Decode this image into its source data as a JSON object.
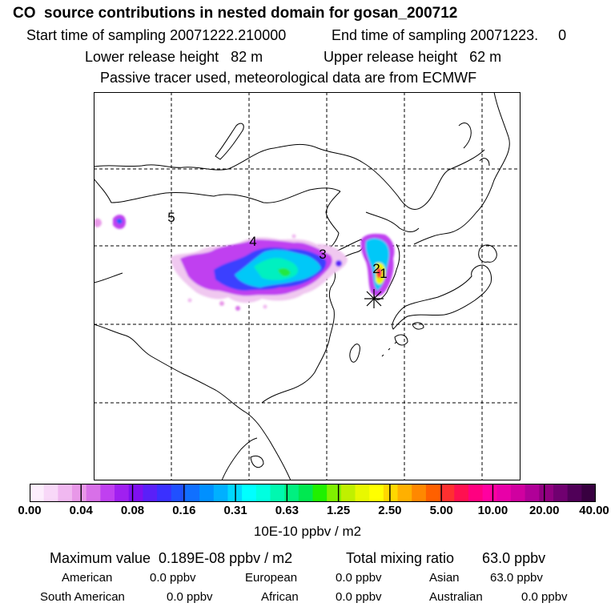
{
  "header": {
    "title": "CO  source contributions in nested domain for gosan_200712",
    "start": "Start time of sampling 20071222.210000",
    "end": "End time of sampling 20071223.     0",
    "lower": "Lower release height   82 m",
    "upper": "Upper release height   62 m",
    "tracer": "Passive tracer used, meteorological data are from ECMWF"
  },
  "map": {
    "station_markers": [
      "5",
      "4",
      "3",
      "2",
      "1"
    ],
    "star_marker": "receptor"
  },
  "colorbar": {
    "ticks": [
      "0.00",
      "0.04",
      "0.08",
      "0.16",
      "0.31",
      "0.63",
      "1.25",
      "2.50",
      "5.00",
      "10.00",
      "20.00",
      "40.00"
    ],
    "unit": "10E-10 ppbv / m2",
    "colors": [
      "#fdeefd",
      "#f8d8f8",
      "#f0b8f0",
      "#e898e8",
      "#d870e8",
      "#c040f0",
      "#a020f0",
      "#8010f0",
      "#5a20f8",
      "#3a30ff",
      "#2050ff",
      "#1070ff",
      "#0090ff",
      "#00b0ff",
      "#00d8ff",
      "#00ffff",
      "#00ffe0",
      "#00f8b0",
      "#00f080",
      "#00e850",
      "#20f000",
      "#80f000",
      "#c0f000",
      "#e8f800",
      "#ffff00",
      "#ffd800",
      "#ffb000",
      "#ff8800",
      "#ff6000",
      "#ff3030",
      "#ff1050",
      "#ff0080",
      "#ff00a0",
      "#e800a8",
      "#d000a0",
      "#b00098",
      "#900080",
      "#700070",
      "#500058",
      "#380040"
    ]
  },
  "summary": {
    "max_label": "Maximum value  0.189E-08 ppbv / m2",
    "total_label": "Total mixing ratio       63.0 ppbv",
    "regions": [
      {
        "name": "American",
        "value": "0.0 ppbv"
      },
      {
        "name": "European",
        "value": "0.0 ppbv"
      },
      {
        "name": "Asian",
        "value": "63.0 ppbv"
      },
      {
        "name": "South American",
        "value": "0.0 ppbv"
      },
      {
        "name": "African",
        "value": "0.0 ppbv"
      },
      {
        "name": "Australian",
        "value": "0.0 ppbv"
      }
    ]
  }
}
